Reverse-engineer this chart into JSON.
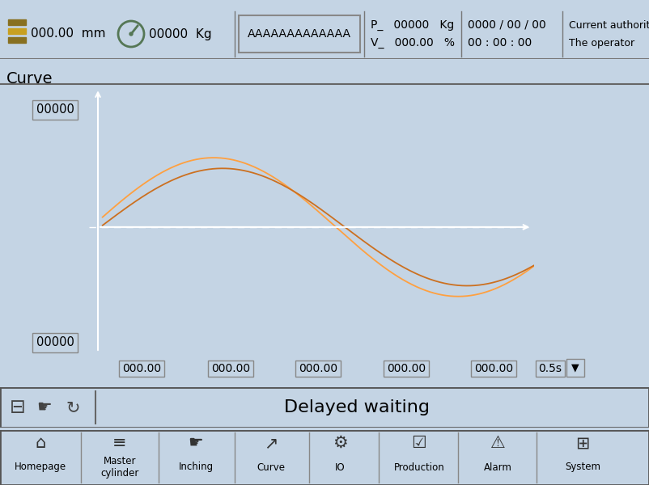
{
  "bg_color": "#c4d4e4",
  "header_bg": "#c4d4e4",
  "plot_bg": "#000000",
  "curve1_color": "#ffa040",
  "curve2_color": "#cc7020",
  "dashed_color": "#ffffff",
  "header_left1": "000.00  mm",
  "header_left2": "00000  Kg",
  "header_center": "AAAAAAAAAAAAA",
  "header_p": "P_   00000   Kg",
  "header_v": "V_   000.00   %",
  "header_date": "0000 / 00 / 00",
  "header_time": "00 : 00 : 00",
  "header_auth1": "Current authority:",
  "header_auth2": "The operator",
  "curve_title": "Curve",
  "y_top": "00000",
  "y_bot": "00000",
  "x_ticks": [
    "000.00",
    "000.00",
    "000.00",
    "000.00",
    "000.00"
  ],
  "time_btn": "0.5s",
  "status_text": "Delayed waiting",
  "nav_labels": [
    "Homepage",
    "Master\ncylinder",
    "Inching",
    "Curve",
    "IO",
    "Production",
    "Alarm",
    "System"
  ],
  "fig_w": 8.02,
  "fig_h": 6.0,
  "dpi": 100
}
